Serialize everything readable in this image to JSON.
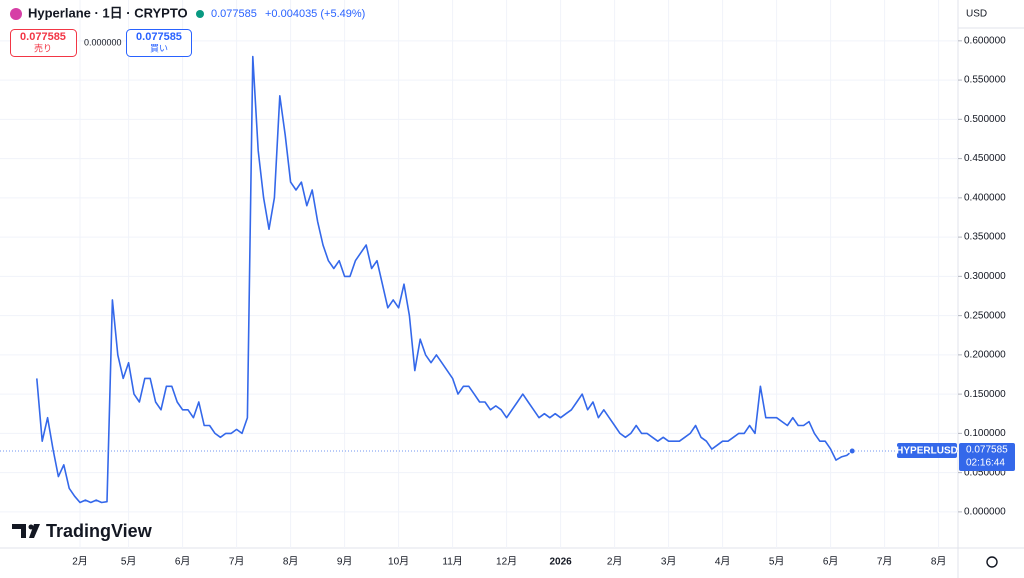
{
  "chart_data": {
    "type": "line",
    "title": "Hyperlane · 1日 · CRYPTO",
    "header_price": "0.077585",
    "header_change": "+0.004035 (+5.49%)",
    "sell_price": "0.077585",
    "sell_label": "売り",
    "spread": "0.000000",
    "buy_price": "0.077585",
    "buy_label": "買い",
    "currency": "USD",
    "symbol_label": "HYPERLUSD",
    "price_label": "0.077585",
    "countdown": "02:16:44",
    "brand": "TradingView",
    "grid": true,
    "ylim": [
      -0.046,
      0.652
    ],
    "yticks": [
      {
        "value": 0,
        "label": "0.000000"
      },
      {
        "value": 0.05,
        "label": "0.050000"
      },
      {
        "value": 0.1,
        "label": "0.100000"
      },
      {
        "value": 0.15,
        "label": "0.150000"
      },
      {
        "value": 0.2,
        "label": "0.200000"
      },
      {
        "value": 0.25,
        "label": "0.250000"
      },
      {
        "value": 0.3,
        "label": "0.300000"
      },
      {
        "value": 0.35,
        "label": "0.350000"
      },
      {
        "value": 0.4,
        "label": "0.400000"
      },
      {
        "value": 0.45,
        "label": "0.450000"
      },
      {
        "value": 0.5,
        "label": "0.500000"
      },
      {
        "value": 0.55,
        "label": "0.550000"
      },
      {
        "value": 0.6,
        "label": "0.600000"
      }
    ],
    "categories": [
      null,
      null,
      null,
      null,
      null,
      null,
      null,
      null,
      null,
      null,
      "2月",
      null,
      null,
      null,
      null,
      null,
      null,
      null,
      null,
      "5月",
      null,
      null,
      null,
      null,
      null,
      null,
      null,
      null,
      null,
      "6月",
      null,
      null,
      null,
      null,
      null,
      null,
      null,
      null,
      null,
      "7月",
      null,
      null,
      null,
      null,
      null,
      null,
      null,
      null,
      null,
      "8月",
      null,
      null,
      null,
      null,
      null,
      null,
      null,
      null,
      null,
      "9月",
      null,
      null,
      null,
      null,
      null,
      null,
      null,
      null,
      null,
      "10月",
      null,
      null,
      null,
      null,
      null,
      null,
      null,
      null,
      null,
      "11月",
      null,
      null,
      null,
      null,
      null,
      null,
      null,
      null,
      null,
      "12月",
      null,
      null,
      null,
      null,
      null,
      null,
      null,
      null,
      null,
      "2026",
      null,
      null,
      null,
      null,
      null,
      null,
      null,
      null,
      null,
      "2月",
      null,
      null,
      null,
      null,
      null,
      null,
      null,
      null,
      null,
      "3月",
      null,
      null,
      null,
      null,
      null,
      null,
      null,
      null,
      null,
      "4月",
      null,
      null,
      null,
      null,
      null,
      null,
      null,
      null,
      null,
      "5月",
      null,
      null,
      null,
      null,
      null,
      null,
      null,
      null,
      null,
      "6月",
      null,
      null,
      null,
      null,
      null,
      null,
      null,
      null,
      null,
      "7月",
      null,
      null,
      null,
      null,
      null,
      null,
      null,
      null,
      null,
      "8月",
      null,
      null,
      null
    ],
    "series": [
      {
        "name": "HYPERLUSD",
        "color": "#3468ea",
        "values": [
          null,
          null,
          0.17,
          0.09,
          0.12,
          0.08,
          0.045,
          0.06,
          0.03,
          0.02,
          0.012,
          0.015,
          0.012,
          0.015,
          0.012,
          0.013,
          0.27,
          0.2,
          0.17,
          0.19,
          0.15,
          0.14,
          0.17,
          0.17,
          0.14,
          0.13,
          0.16,
          0.16,
          0.14,
          0.13,
          0.13,
          0.12,
          0.14,
          0.11,
          0.11,
          0.1,
          0.095,
          0.1,
          0.1,
          0.105,
          0.1,
          0.12,
          0.58,
          0.46,
          0.4,
          0.36,
          0.4,
          0.53,
          0.48,
          0.42,
          0.41,
          0.42,
          0.39,
          0.41,
          0.37,
          0.34,
          0.32,
          0.31,
          0.32,
          0.3,
          0.3,
          0.32,
          0.33,
          0.34,
          0.31,
          0.32,
          0.29,
          0.26,
          0.27,
          0.26,
          0.29,
          0.25,
          0.18,
          0.22,
          0.2,
          0.19,
          0.2,
          0.19,
          0.18,
          0.17,
          0.15,
          0.16,
          0.16,
          0.15,
          0.14,
          0.14,
          0.13,
          0.135,
          0.13,
          0.12,
          0.13,
          0.14,
          0.15,
          0.14,
          0.13,
          0.12,
          0.125,
          0.12,
          0.125,
          0.12,
          0.125,
          0.13,
          0.14,
          0.15,
          0.13,
          0.14,
          0.12,
          0.13,
          0.12,
          0.11,
          0.1,
          0.095,
          0.1,
          0.11,
          0.1,
          0.1,
          0.095,
          0.09,
          0.095,
          0.09,
          0.09,
          0.09,
          0.095,
          0.1,
          0.11,
          0.095,
          0.09,
          0.08,
          0.085,
          0.09,
          0.09,
          0.095,
          0.1,
          0.1,
          0.11,
          0.1,
          0.16,
          0.12,
          0.12,
          0.12,
          0.115,
          0.11,
          0.12,
          0.11,
          0.11,
          0.115,
          0.1,
          0.09,
          0.09,
          0.08,
          0.066,
          0.07,
          0.072,
          0.077585,
          null,
          null,
          null,
          null,
          null,
          null,
          null,
          null,
          null,
          null,
          null,
          null,
          null,
          null,
          null,
          null,
          null,
          null,
          null
        ]
      }
    ]
  }
}
